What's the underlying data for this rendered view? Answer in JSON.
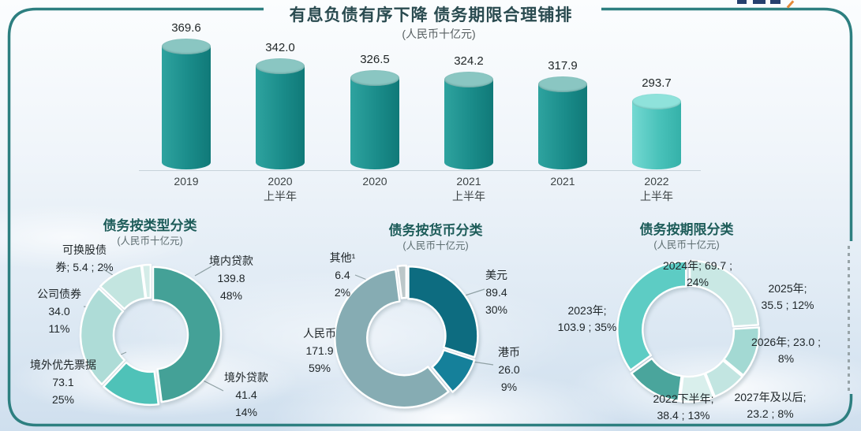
{
  "page": {
    "title": "有息负债有序下降 债务期限合理铺排",
    "subtitle": "(人民币十亿元)",
    "frame_color": "#2d7f80",
    "logo_icon": "clipped-logo-fragment"
  },
  "chart_data": [
    {
      "type": "bar",
      "title": "有息负债有序下降 债务期限合理铺排",
      "ylabel": "人民币十亿元",
      "categories": [
        "2019",
        "2020 上半年",
        "2020",
        "2021 上半年",
        "2021",
        "2022 上半年"
      ],
      "categories_lines": [
        [
          "2019"
        ],
        [
          "2020",
          "上半年"
        ],
        [
          "2020"
        ],
        [
          "2021",
          "上半年"
        ],
        [
          "2021"
        ],
        [
          "2022",
          "上半年"
        ]
      ],
      "values": [
        369.6,
        342.0,
        326.5,
        324.2,
        317.9,
        293.7
      ],
      "values_display": [
        "369.6",
        "342.0",
        "326.5",
        "324.2",
        "317.9",
        "293.7"
      ],
      "bar_body_colors": [
        "#2ea39f",
        "#1a8c8a",
        "#107978"
      ],
      "bar_body_colors_last": [
        "#74d9d2",
        "#49c2ba",
        "#35b1a9"
      ],
      "bar_top_color": "#8ac6c2",
      "bar_top_color_last": "#8fe2db",
      "grid": false
    },
    {
      "type": "donut",
      "title": "债务按类型分类",
      "unit_note": "(人民币十亿元)",
      "legend_position": "around",
      "segments": [
        {
          "label": "境内贷款",
          "value": 139.8,
          "pct": 48,
          "color": "#44a197",
          "label_lines": [
            "境内贷款",
            "139.8",
            "48%"
          ]
        },
        {
          "label": "境外贷款",
          "value": 41.4,
          "pct": 14,
          "color": "#4fc2b8",
          "label_lines": [
            "境外贷款",
            "41.4",
            "14%"
          ]
        },
        {
          "label": "境外优先票据",
          "value": 73.1,
          "pct": 25,
          "color": "#aedcd7",
          "label_lines": [
            "境外优先票据",
            "73.1",
            "25%"
          ]
        },
        {
          "label": "公司债券",
          "value": 34.0,
          "pct": 11,
          "color": "#c3e5e0",
          "label_lines": [
            "公司债券",
            "34.0",
            "11%"
          ]
        },
        {
          "label": "可换股债券",
          "value": 5.4,
          "pct": 2,
          "color": "#d4ece8",
          "label_lines": [
            "可换股债",
            "券; 5.4 ; 2%"
          ]
        }
      ]
    },
    {
      "type": "donut",
      "title": "债务按货币分类",
      "unit_note": "(人民币十亿元)",
      "legend_position": "around",
      "segments": [
        {
          "label": "美元",
          "value": 89.4,
          "pct": 30,
          "color": "#0d6c80",
          "label_lines": [
            "美元",
            "89.4",
            "30%"
          ]
        },
        {
          "label": "港币",
          "value": 26.0,
          "pct": 9,
          "color": "#15809a",
          "label_lines": [
            "港币",
            "26.0",
            "9%"
          ]
        },
        {
          "label": "人民币",
          "value": 171.9,
          "pct": 59,
          "color": "#86acb3",
          "label_lines": [
            "人民币",
            "171.9",
            "59%"
          ]
        },
        {
          "label": "其他¹",
          "value": 6.4,
          "pct": 2,
          "color": "#bcc7c9",
          "label_lines": [
            "其他¹",
            "6.4",
            "2%"
          ]
        }
      ]
    },
    {
      "type": "donut",
      "title": "债务按期限分类",
      "unit_note": "(人民币十亿元)",
      "legend_position": "around",
      "segments": [
        {
          "label": "2024年",
          "value": 69.7,
          "pct": 24,
          "color": "#c9e8e4",
          "label_lines": [
            "2024年;  69.7 ;",
            "24%"
          ]
        },
        {
          "label": "2025年",
          "value": 35.5,
          "pct": 12,
          "color": "#a3d9d3",
          "label_lines": [
            "2025年;",
            "35.5 ; 12%"
          ]
        },
        {
          "label": "2026年",
          "value": 23.0,
          "pct": 8,
          "color": "#c2e5e1",
          "label_lines": [
            "2026年;  23.0 ;",
            "8%"
          ]
        },
        {
          "label": "2027年及以后",
          "value": 23.2,
          "pct": 8,
          "color": "#d9efec",
          "label_lines": [
            "2027年及以后;",
            "23.2 ; 8%"
          ]
        },
        {
          "label": "2022下半年",
          "value": 38.4,
          "pct": 13,
          "color": "#4aa59c",
          "label_lines": [
            "2022下半年;",
            "38.4 ; 13%"
          ]
        },
        {
          "label": "2023年",
          "value": 103.9,
          "pct": 35,
          "color": "#5dccc4",
          "label_lines": [
            "2023年;",
            "103.9 ; 35%"
          ]
        }
      ]
    }
  ]
}
